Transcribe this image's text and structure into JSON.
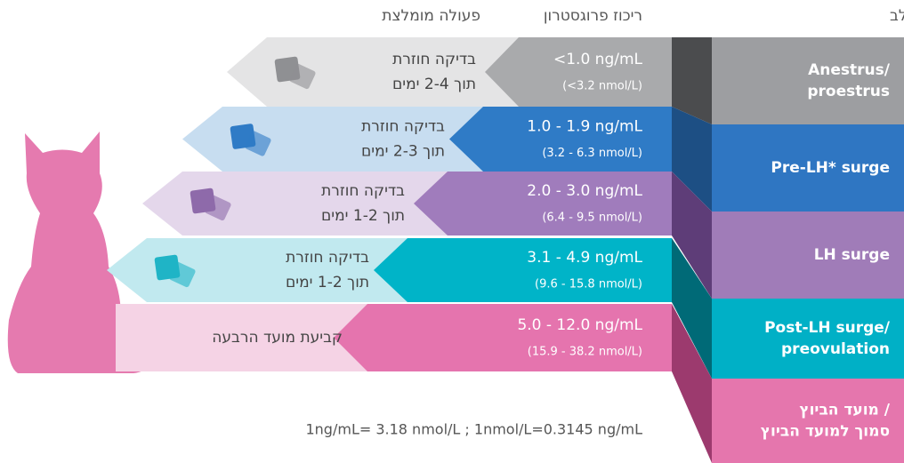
{
  "headers": {
    "stage": "השלב",
    "progesterone": "ריכוז פרוגסטרון",
    "action": "פעולה מומלצת"
  },
  "rows": [
    {
      "stage": [
        "Anestrus/",
        "proestrus"
      ],
      "ng": "<1.0 ng/mL",
      "nmol": "(<3.2 nmol/L)",
      "action": [
        "בדיקה חוזרת",
        "תוך 2-4 ימים"
      ]
    },
    {
      "stage": [
        "Pre-LH* surge"
      ],
      "ng": "1.0 - 1.9 ng/mL",
      "nmol": "(3.2 - 6.3 nmol/L)",
      "action": [
        "בדיקה חוזרת",
        "תוך 2-3 ימים"
      ]
    },
    {
      "stage": [
        "LH surge"
      ],
      "ng": "2.0 - 3.0 ng/mL",
      "nmol": "(6.4 - 9.5 nmol/L)",
      "action": [
        "בדיקה חוזרת",
        "תוך 1-2 ימים"
      ]
    },
    {
      "stage": [
        "Post-LH surge/",
        "preovulation"
      ],
      "ng": "3.1 - 4.9 ng/mL",
      "nmol": "(9.6 - 15.8 nmol/L)",
      "action": [
        "בדיקה חוזרת",
        "תוך 1-2 ימים"
      ]
    },
    {
      "stage": [
        "מועד הביוץ /",
        "סמוך למועד הביוץ"
      ],
      "ng": "5.0 - 12.0 ng/mL",
      "nmol": "(15.9 - 38.2 nmol/L)",
      "action": [
        "קביעת מועד הרבעה"
      ]
    }
  ],
  "footnote": "1ng/mL= 3.18 nmol/L ; 1nmol/L=0.3145 ng/mL"
}
